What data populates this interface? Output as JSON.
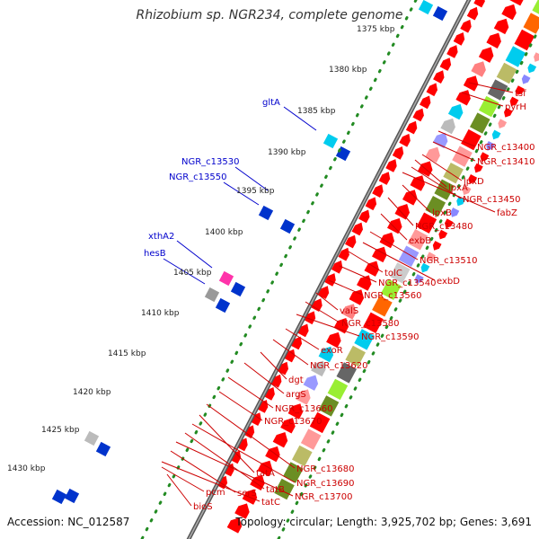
{
  "title": "Rhizobium sp. NGR234, complete genome",
  "footer": {
    "accession": "Accession: NC_012587",
    "summary": "Topology: circular; Length: 3,925,702 bp; Genes: 3,691"
  },
  "colors": {
    "backbone": "#888888",
    "ticks": "#228B22",
    "forward_label": "#0000CC",
    "reverse_label": "#CC0000",
    "cds": "#FF0000"
  },
  "scale_ticks": [
    {
      "label": "1375 kbp"
    },
    {
      "label": "1380 kbp"
    },
    {
      "label": "1385 kbp"
    },
    {
      "label": "1390 kbp"
    },
    {
      "label": "1395 kbp"
    },
    {
      "label": "1400 kbp"
    },
    {
      "label": "1405 kbp"
    },
    {
      "label": "1410 kbp"
    },
    {
      "label": "1415 kbp"
    },
    {
      "label": "1420 kbp"
    },
    {
      "label": "1425 kbp"
    },
    {
      "label": "1430 kbp"
    }
  ],
  "forward_genes": [
    {
      "name": "gltA"
    },
    {
      "name": "NGR_c13530"
    },
    {
      "name": "NGR_c13550"
    },
    {
      "name": "xthA2"
    },
    {
      "name": "hesB"
    }
  ],
  "reverse_genes": [
    {
      "name": "tsf"
    },
    {
      "name": "pyrH"
    },
    {
      "name": "NGR_c13400"
    },
    {
      "name": "NGR_c13410"
    },
    {
      "name": "lpxD"
    },
    {
      "name": "lpxA"
    },
    {
      "name": "NGR_c13450"
    },
    {
      "name": "fabZ"
    },
    {
      "name": "lpxB"
    },
    {
      "name": "NGR_c13480"
    },
    {
      "name": "exbB"
    },
    {
      "name": "NGR_c13510"
    },
    {
      "name": "exbD"
    },
    {
      "name": "tolC"
    },
    {
      "name": "NGR_c13540"
    },
    {
      "name": "NGR_c13560"
    },
    {
      "name": "valS"
    },
    {
      "name": "NGR_c13580"
    },
    {
      "name": "NGR_c13590"
    },
    {
      "name": "exoR"
    },
    {
      "name": "NGR_c13620"
    },
    {
      "name": "dgt"
    },
    {
      "name": "argS"
    },
    {
      "name": "NGR_c13660"
    },
    {
      "name": "NGR_c13670"
    },
    {
      "name": "NGR_c13680"
    },
    {
      "name": "tatA"
    },
    {
      "name": "NGR_c13690"
    },
    {
      "name": "tatB"
    },
    {
      "name": "NGR_c13700"
    },
    {
      "name": "serS"
    },
    {
      "name": "tatC"
    },
    {
      "name": "pcm"
    },
    {
      "name": "bioS"
    }
  ]
}
